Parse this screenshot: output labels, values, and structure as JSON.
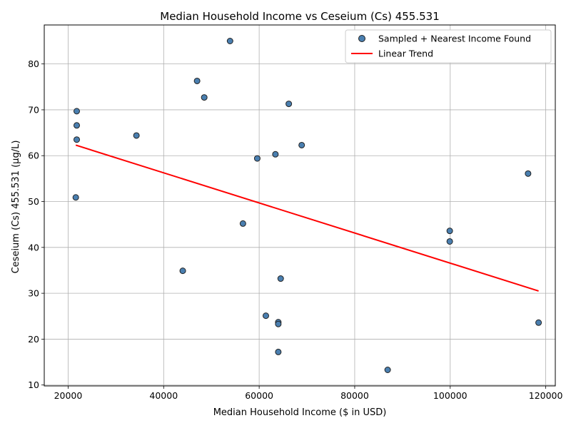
{
  "chart_data": {
    "type": "scatter",
    "title": "Median Household Income vs Ceseium (Cs) 455.531",
    "xlabel": "Median Household Income ($ in USD)",
    "ylabel": "Ceseium (Cs) 455.531 (µg/L)",
    "xlim": [
      15000,
      122000
    ],
    "ylim": [
      9.8,
      88.5
    ],
    "xticks": [
      20000,
      40000,
      60000,
      80000,
      100000,
      120000
    ],
    "yticks": [
      10,
      20,
      30,
      40,
      50,
      60,
      70,
      80
    ],
    "grid": true,
    "legend_position": "top-right",
    "series": [
      {
        "name": "Sampled + Nearest Income Found",
        "kind": "scatter",
        "color": "#4a7fb0",
        "points": [
          {
            "x": 53900,
            "y": 85.0
          },
          {
            "x": 47000,
            "y": 76.3
          },
          {
            "x": 48500,
            "y": 72.7
          },
          {
            "x": 66200,
            "y": 71.3
          },
          {
            "x": 21800,
            "y": 69.7
          },
          {
            "x": 21800,
            "y": 66.6
          },
          {
            "x": 21800,
            "y": 63.5
          },
          {
            "x": 34300,
            "y": 64.4
          },
          {
            "x": 68900,
            "y": 62.3
          },
          {
            "x": 63400,
            "y": 60.3
          },
          {
            "x": 59600,
            "y": 59.4
          },
          {
            "x": 116300,
            "y": 56.1
          },
          {
            "x": 21600,
            "y": 50.9
          },
          {
            "x": 56600,
            "y": 45.2
          },
          {
            "x": 99900,
            "y": 43.6
          },
          {
            "x": 99900,
            "y": 41.3
          },
          {
            "x": 44000,
            "y": 34.9
          },
          {
            "x": 64500,
            "y": 33.2
          },
          {
            "x": 61400,
            "y": 25.1
          },
          {
            "x": 64000,
            "y": 23.7
          },
          {
            "x": 64000,
            "y": 23.3
          },
          {
            "x": 118500,
            "y": 23.6
          },
          {
            "x": 64000,
            "y": 17.2
          },
          {
            "x": 86900,
            "y": 13.3
          }
        ]
      },
      {
        "name": "Linear Trend",
        "kind": "line",
        "color": "#ff0000",
        "points": [
          {
            "x": 21600,
            "y": 62.3
          },
          {
            "x": 118500,
            "y": 30.5
          }
        ]
      }
    ]
  }
}
